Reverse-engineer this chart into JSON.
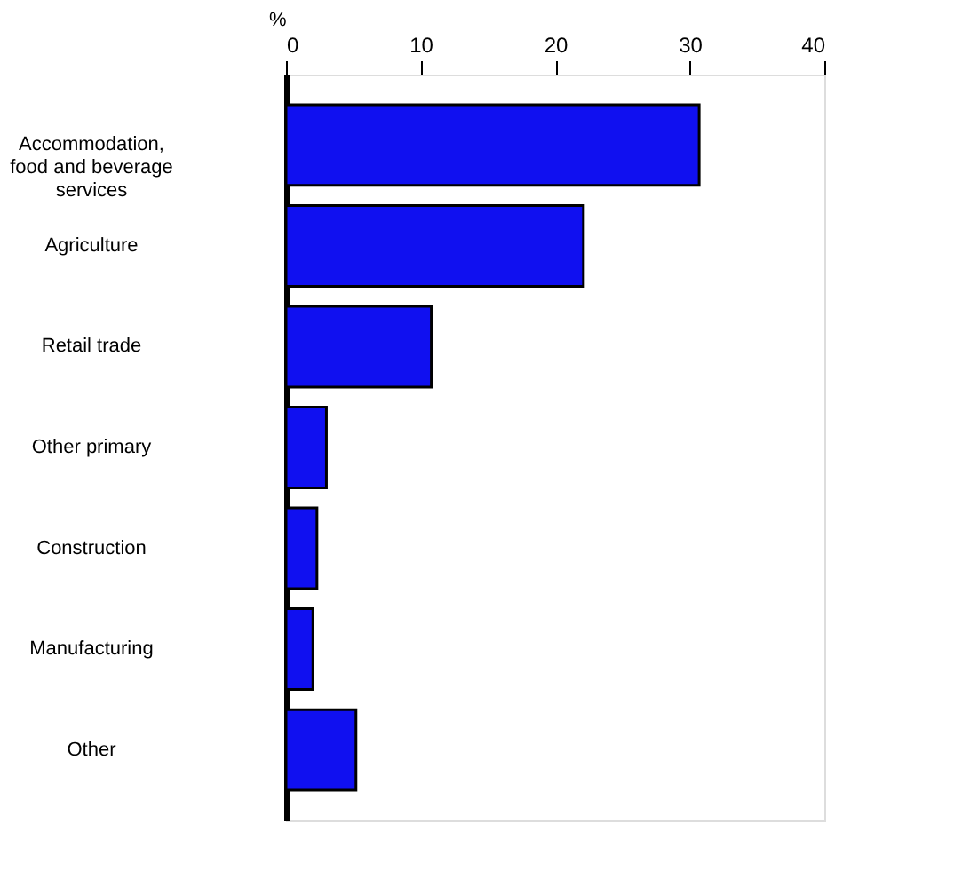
{
  "chart_data": {
    "type": "bar",
    "orientation": "horizontal",
    "xlabel": "%",
    "categories": [
      "Accommodation,\nfood and beverage\nservices",
      "Agriculture",
      "Retail trade",
      "Other primary",
      "Construction",
      "Manufacturing",
      "Other"
    ],
    "values": [
      30.7,
      22.1,
      10.8,
      3.0,
      2.3,
      2.0,
      5.2
    ],
    "color": "#1010f0",
    "xlim": [
      0,
      40
    ],
    "xticks": [
      0,
      10,
      20,
      30,
      40
    ],
    "grid": false
  }
}
